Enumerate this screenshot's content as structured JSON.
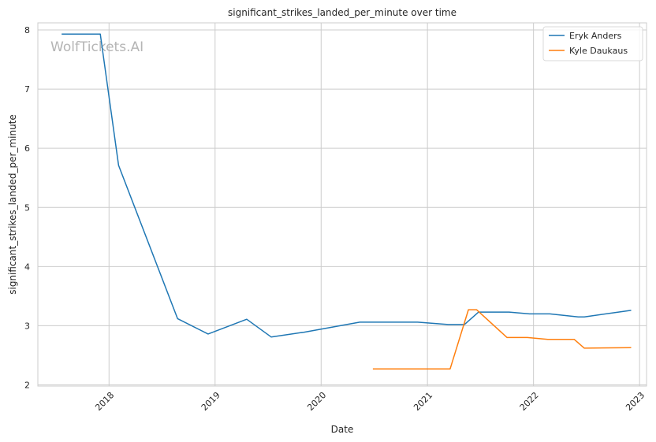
{
  "watermark": "WolfTickets.AI",
  "chart_data": {
    "type": "line",
    "title": "significant_strikes_landed_per_minute over time",
    "xlabel": "Date",
    "ylabel": "significant_strikes_landed_per_minute",
    "x_type": "date",
    "xlim": [
      "2017-05-01",
      "2023-01-25"
    ],
    "ylim": [
      1.98,
      8.12
    ],
    "x_ticks": [
      "2018-01-01",
      "2019-01-01",
      "2020-01-01",
      "2021-01-01",
      "2022-01-01",
      "2023-01-01"
    ],
    "x_tick_labels": [
      "2018",
      "2019",
      "2020",
      "2021",
      "2022",
      "2023"
    ],
    "y_ticks": [
      2,
      3,
      4,
      5,
      6,
      7,
      8
    ],
    "y_tick_labels": [
      "2",
      "3",
      "4",
      "5",
      "6",
      "7",
      "8"
    ],
    "grid": true,
    "legend_position": "top-right",
    "series": [
      {
        "name": "Eryk Anders",
        "color": "#1f77b4",
        "points": [
          [
            "2017-07-22",
            7.93
          ],
          [
            "2017-12-02",
            7.93
          ],
          [
            "2018-02-03",
            5.71
          ],
          [
            "2018-08-25",
            3.12
          ],
          [
            "2018-12-08",
            2.86
          ],
          [
            "2019-04-20",
            3.11
          ],
          [
            "2019-07-13",
            2.81
          ],
          [
            "2019-11-02",
            2.89
          ],
          [
            "2020-05-13",
            3.06
          ],
          [
            "2020-11-28",
            3.06
          ],
          [
            "2021-03-13",
            3.02
          ],
          [
            "2021-05-08",
            3.02
          ],
          [
            "2021-06-26",
            3.23
          ],
          [
            "2021-10-09",
            3.23
          ],
          [
            "2021-12-18",
            3.2
          ],
          [
            "2022-02-26",
            3.2
          ],
          [
            "2022-06-04",
            3.15
          ],
          [
            "2022-06-25",
            3.15
          ],
          [
            "2022-12-03",
            3.26
          ]
        ]
      },
      {
        "name": "Kyle Daukaus",
        "color": "#ff7f0e",
        "points": [
          [
            "2020-06-27",
            2.27
          ],
          [
            "2021-03-20",
            2.27
          ],
          [
            "2021-05-22",
            3.27
          ],
          [
            "2021-06-19",
            3.27
          ],
          [
            "2021-10-02",
            2.8
          ],
          [
            "2021-12-11",
            2.8
          ],
          [
            "2022-02-19",
            2.77
          ],
          [
            "2022-05-21",
            2.77
          ],
          [
            "2022-06-25",
            2.62
          ],
          [
            "2022-12-03",
            2.63
          ]
        ]
      }
    ]
  }
}
